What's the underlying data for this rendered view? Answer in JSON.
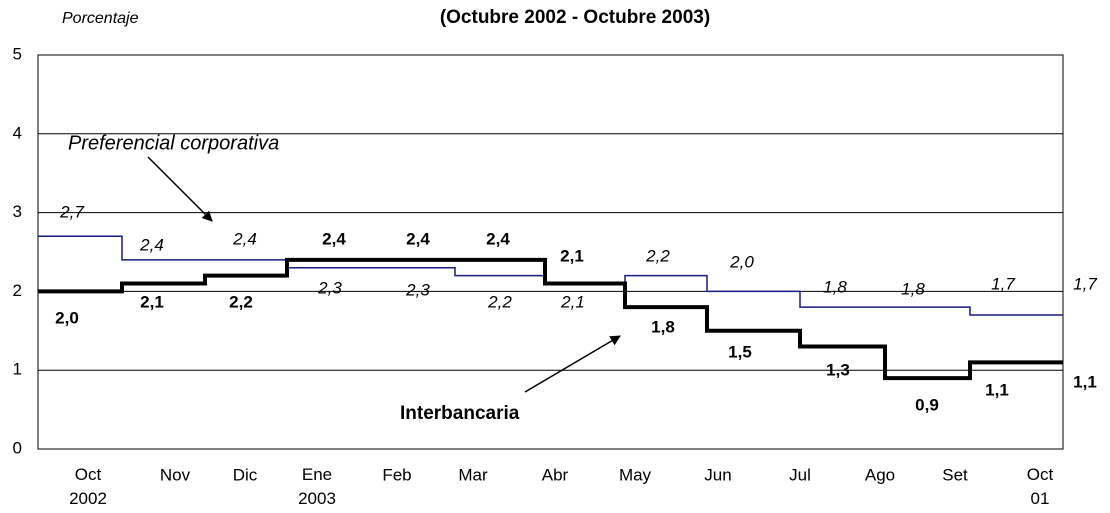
{
  "chart_data": {
    "type": "step-line",
    "title": "(Octubre 2002 - Octubre 2003)",
    "y_label": "Porcentaje",
    "categories": [
      "Oct 2002",
      "Nov",
      "Dic",
      "Ene 2003",
      "Feb",
      "Mar",
      "Abr",
      "May",
      "Jun",
      "Jul",
      "Ago",
      "Set",
      "Oct 01"
    ],
    "ylim": [
      0,
      5
    ],
    "yticks": [
      0,
      1,
      2,
      3,
      4,
      5
    ],
    "grid": true,
    "series": [
      {
        "name": "Preferencial corporativa",
        "color": "#1a1a80",
        "values": [
          2.7,
          2.4,
          2.4,
          2.3,
          2.3,
          2.2,
          2.1,
          2.2,
          2.0,
          1.8,
          1.8,
          1.7,
          1.7
        ],
        "value_labels": [
          "2,7",
          "2,4",
          "2,4",
          "2,3",
          "2,3",
          "2,2",
          "2,1",
          "2,2",
          "2,0",
          "1,8",
          "1,8",
          "1,7",
          "1,7"
        ]
      },
      {
        "name": "Interbancaria",
        "color": "#000000",
        "values": [
          2.0,
          2.1,
          2.2,
          2.4,
          2.4,
          2.4,
          2.1,
          1.8,
          1.5,
          1.3,
          0.9,
          1.1,
          1.1
        ],
        "value_labels": [
          "2,0",
          "2,1",
          "2,2",
          "2,4",
          "2,4",
          "2,4",
          "2,1",
          "1,8",
          "1,5",
          "1,3",
          "0,9",
          "1,1",
          "1,1"
        ]
      }
    ]
  }
}
